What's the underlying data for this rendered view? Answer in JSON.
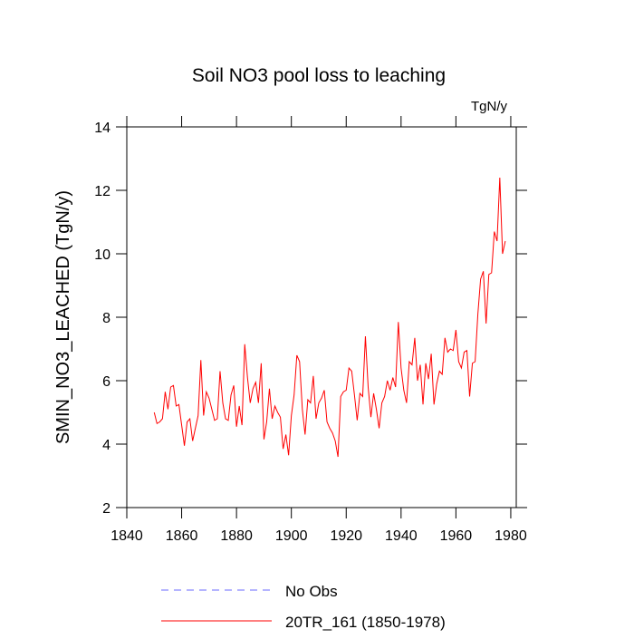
{
  "chart_data": {
    "type": "line",
    "title": "Soil NO3 pool loss to leaching",
    "units": "TgN/y",
    "y_label": "SMIN_NO3_LEACHED  (TgN/y)",
    "x": [
      1850,
      1851,
      1852,
      1853,
      1854,
      1855,
      1856,
      1857,
      1858,
      1859,
      1860,
      1861,
      1862,
      1863,
      1864,
      1865,
      1866,
      1867,
      1868,
      1869,
      1870,
      1871,
      1872,
      1873,
      1874,
      1875,
      1876,
      1877,
      1878,
      1879,
      1880,
      1881,
      1882,
      1883,
      1884,
      1885,
      1886,
      1887,
      1888,
      1889,
      1890,
      1891,
      1892,
      1893,
      1894,
      1895,
      1896,
      1897,
      1898,
      1899,
      1900,
      1901,
      1902,
      1903,
      1904,
      1905,
      1906,
      1907,
      1908,
      1909,
      1910,
      1911,
      1912,
      1913,
      1914,
      1915,
      1916,
      1917,
      1918,
      1919,
      1920,
      1921,
      1922,
      1923,
      1924,
      1925,
      1926,
      1927,
      1928,
      1929,
      1930,
      1931,
      1932,
      1933,
      1934,
      1935,
      1936,
      1937,
      1938,
      1939,
      1940,
      1941,
      1942,
      1943,
      1944,
      1945,
      1946,
      1947,
      1948,
      1949,
      1950,
      1951,
      1952,
      1953,
      1954,
      1955,
      1956,
      1957,
      1958,
      1959,
      1960,
      1961,
      1962,
      1963,
      1964,
      1965,
      1966,
      1967,
      1968,
      1969,
      1970,
      1971,
      1972,
      1973,
      1974,
      1975,
      1976,
      1977,
      1978
    ],
    "series": [
      {
        "name": "No Obs",
        "color": "#6b6bff",
        "dash": true,
        "values": [
          null,
          null,
          null,
          null,
          null,
          null,
          null,
          null,
          null,
          null,
          null,
          null,
          null,
          null,
          null,
          null,
          null,
          null,
          null,
          null,
          null,
          null,
          null,
          null,
          null,
          null,
          null,
          null,
          null,
          null,
          null,
          null,
          null,
          null,
          null,
          null,
          null,
          null,
          null,
          null,
          null,
          null,
          null,
          null,
          null,
          null,
          null,
          null,
          null,
          null,
          null,
          null,
          null,
          null,
          null,
          null,
          null,
          null,
          null,
          null,
          null,
          null,
          null,
          null,
          null,
          null,
          null,
          null,
          null,
          null,
          null,
          null,
          null,
          null,
          null,
          null,
          null,
          null,
          null,
          null,
          null,
          null,
          null,
          null,
          null,
          null,
          null,
          null,
          null,
          null,
          null,
          null,
          null,
          null,
          null,
          null,
          null,
          null,
          null,
          null,
          null,
          null,
          null,
          null,
          null,
          null,
          null,
          null,
          null,
          null,
          null,
          null,
          null,
          null,
          null,
          null,
          null,
          null,
          null,
          null,
          null,
          null,
          null,
          null,
          null,
          null,
          null,
          null,
          null
        ]
      },
      {
        "name": "20TR_161 (1850-1978)",
        "color": "#ff0000",
        "dash": false,
        "values": [
          5.0,
          4.65,
          4.7,
          4.8,
          5.65,
          5.1,
          5.8,
          5.85,
          5.2,
          5.25,
          4.6,
          3.95,
          4.7,
          4.8,
          4.1,
          4.5,
          4.9,
          6.65,
          4.9,
          5.65,
          5.45,
          5.1,
          4.75,
          4.8,
          6.3,
          5.3,
          4.8,
          4.75,
          5.55,
          5.85,
          4.55,
          5.2,
          4.6,
          7.15,
          6.1,
          5.3,
          5.75,
          5.95,
          5.3,
          6.55,
          4.15,
          4.7,
          5.75,
          4.8,
          5.2,
          5.0,
          4.85,
          3.85,
          4.3,
          3.65,
          4.9,
          5.55,
          6.8,
          6.6,
          5.1,
          4.3,
          5.4,
          5.3,
          6.15,
          4.8,
          5.3,
          5.45,
          5.7,
          4.7,
          4.5,
          4.35,
          4.1,
          3.6,
          5.5,
          5.65,
          5.7,
          6.4,
          6.3,
          5.55,
          4.75,
          5.6,
          5.5,
          7.4,
          5.8,
          4.85,
          5.6,
          5.1,
          4.5,
          5.3,
          5.5,
          6.0,
          5.7,
          6.1,
          5.8,
          7.85,
          6.4,
          5.7,
          5.3,
          6.6,
          6.5,
          7.35,
          6.0,
          6.5,
          5.25,
          6.55,
          6.05,
          6.85,
          5.25,
          5.9,
          6.3,
          6.2,
          7.35,
          6.9,
          7.0,
          6.95,
          7.6,
          6.6,
          6.4,
          6.9,
          6.95,
          5.5,
          6.55,
          6.6,
          8.1,
          9.2,
          9.45,
          7.8,
          9.35,
          9.4,
          10.7,
          10.4,
          12.4,
          10.0,
          10.4
        ]
      }
    ],
    "xlim": [
      1840,
      1982
    ],
    "xticks": [
      1840,
      1860,
      1880,
      1900,
      1920,
      1940,
      1960,
      1980
    ],
    "ylim": [
      2,
      14
    ],
    "yticks": [
      2,
      4,
      6,
      8,
      10,
      12,
      14
    ]
  }
}
